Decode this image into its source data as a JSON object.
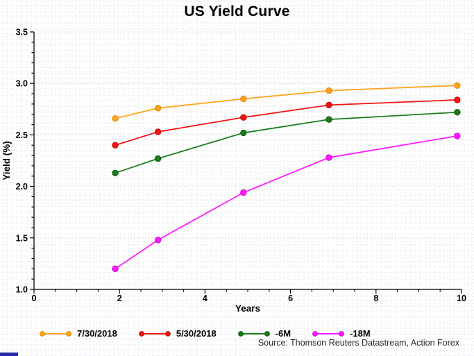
{
  "title": "US Yield Curve",
  "source": "Source: Thomson Reuters Datastream, Action Forex",
  "decor": {
    "corner_mark_color": "#2a2aa6"
  },
  "chart_data": {
    "type": "line",
    "title": "US Yield Curve",
    "xlabel": "Years",
    "ylabel": "Yield (%)",
    "xlim": [
      0,
      10
    ],
    "ylim": [
      1.0,
      3.5
    ],
    "x_major_ticks": [
      0,
      2,
      4,
      6,
      8,
      10
    ],
    "x_tick_labels": [
      "0",
      "2",
      "4",
      "6",
      "8",
      "10"
    ],
    "x_minor_step": 0.5,
    "y_major_ticks": [
      1.0,
      1.5,
      2.0,
      2.5,
      3.0,
      3.5
    ],
    "y_tick_labels": [
      "1.0",
      "1.5",
      "2.0",
      "2.5",
      "3.0",
      "3.5"
    ],
    "y_minor_step": 0.1,
    "grid_y": [
      1.5,
      2.0,
      2.5,
      3.0,
      3.5
    ],
    "grid_style": "dotted",
    "legend_position": "bottom",
    "x": [
      1.9,
      2.9,
      4.9,
      6.9,
      9.9
    ],
    "series": [
      {
        "name": "7/30/2018",
        "color": "#FFA41C",
        "edge": "#E08900",
        "values": [
          2.66,
          2.76,
          2.85,
          2.93,
          2.98
        ]
      },
      {
        "name": "5/30/2018",
        "color": "#F21414",
        "edge": "#C40808",
        "values": [
          2.4,
          2.53,
          2.67,
          2.79,
          2.84
        ]
      },
      {
        "name": "-6M",
        "color": "#1B7E1B",
        "edge": "#0A5C0A",
        "values": [
          2.13,
          2.27,
          2.52,
          2.65,
          2.72
        ]
      },
      {
        "name": "-18M",
        "color": "#FF1AFF",
        "edge": "#D400D4",
        "values": [
          1.2,
          1.48,
          1.94,
          2.28,
          2.49
        ]
      }
    ]
  }
}
